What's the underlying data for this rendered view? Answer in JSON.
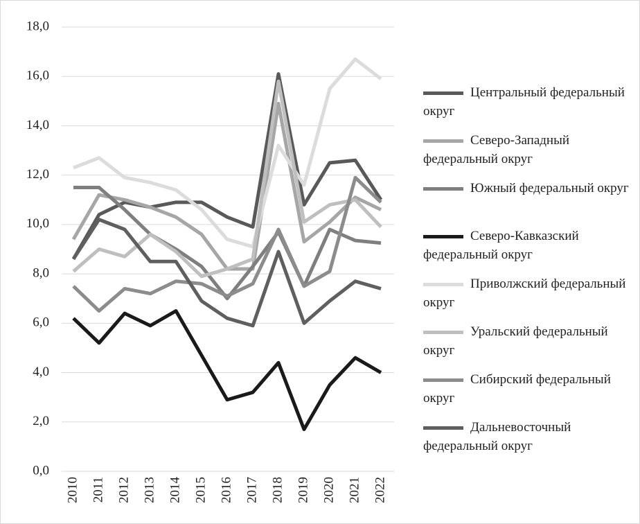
{
  "chart_data": {
    "type": "line",
    "categories": [
      "2010",
      "2011",
      "2012",
      "2013",
      "2014",
      "2015",
      "2016",
      "2017",
      "2018",
      "2019",
      "2020",
      "2021",
      "2022"
    ],
    "ylim": [
      0,
      18
    ],
    "yticks": [
      {
        "value": 0,
        "label": "0,0"
      },
      {
        "value": 2,
        "label": "2,0"
      },
      {
        "value": 4,
        "label": "4,0"
      },
      {
        "value": 6,
        "label": "6,0"
      },
      {
        "value": 8,
        "label": "8,0"
      },
      {
        "value": 10,
        "label": "10,0"
      },
      {
        "value": 12,
        "label": "12,0"
      },
      {
        "value": 14,
        "label": "14,0"
      },
      {
        "value": 16,
        "label": "16,0"
      },
      {
        "value": 18,
        "label": "18,0"
      }
    ],
    "grid": true,
    "legend": "right",
    "series": [
      {
        "name": "Центральный федеральный округ",
        "color": "#595959",
        "values": [
          8.6,
          10.4,
          10.9,
          10.7,
          10.9,
          10.9,
          10.3,
          9.9,
          16.1,
          10.8,
          12.5,
          12.6,
          11.0
        ]
      },
      {
        "name": "Северо-Западный федеральный округ",
        "color": "#a6a6a6",
        "values": [
          9.4,
          11.2,
          11.0,
          10.7,
          10.3,
          9.6,
          8.2,
          8.2,
          14.9,
          9.3,
          10.1,
          11.1,
          10.6
        ]
      },
      {
        "name": "Южный федеральный округ",
        "color": "#7f7f7f",
        "values": [
          11.5,
          11.5,
          10.6,
          9.6,
          9.0,
          8.3,
          7.0,
          8.3,
          9.7,
          7.5,
          9.8,
          9.35,
          9.25
        ]
      },
      {
        "name": "Северо-Кавказский федеральный округ",
        "color": "#1a1a1a",
        "values": [
          6.2,
          5.2,
          6.4,
          5.9,
          6.5,
          4.7,
          2.9,
          3.2,
          4.4,
          1.7,
          3.5,
          4.6,
          4.0
        ]
      },
      {
        "name": "Приволжский федеральный округ",
        "color": "#dcdcdc",
        "values": [
          12.3,
          12.7,
          11.9,
          11.7,
          11.4,
          10.6,
          9.4,
          9.1,
          13.2,
          11.6,
          15.5,
          16.7,
          15.9
        ]
      },
      {
        "name": "Уральский федеральный округ",
        "color": "#bfbfbf",
        "values": [
          8.1,
          9.0,
          8.7,
          9.6,
          8.9,
          7.9,
          8.2,
          8.6,
          15.8,
          10.1,
          10.8,
          11.0,
          9.9
        ]
      },
      {
        "name": "Сибирский федеральный округ",
        "color": "#8c8c8c",
        "values": [
          7.5,
          6.5,
          7.4,
          7.2,
          7.7,
          7.6,
          7.1,
          7.6,
          9.8,
          7.5,
          8.1,
          11.9,
          10.9
        ]
      },
      {
        "name": "Дальневосточный федеральный округ",
        "color": "#5f5f5f",
        "values": [
          8.6,
          10.2,
          9.8,
          8.5,
          8.5,
          6.9,
          6.2,
          5.9,
          8.9,
          6.0,
          6.9,
          7.7,
          7.4
        ]
      }
    ]
  }
}
